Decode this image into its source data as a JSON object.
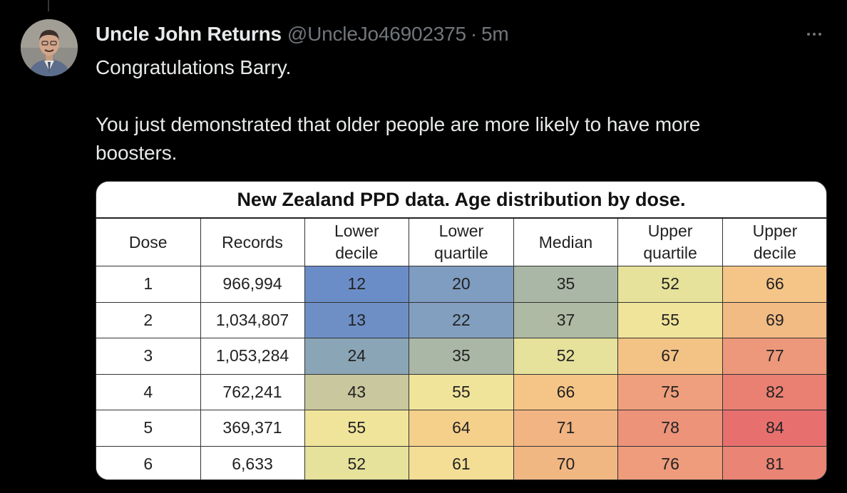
{
  "tweet": {
    "display_name": "Uncle John Returns",
    "handle": "@UncleJo46902375",
    "separator": "·",
    "time": "5m",
    "text_line1": "Congratulations Barry.",
    "text_line2": "You just demonstrated that older people are more likely to have more boosters."
  },
  "avatar_icon": "profile-photo",
  "more_icon": "more-horizontal-icon",
  "table_image": {
    "title": "New Zealand PPD data. Age distribution by dose.",
    "headers": {
      "dose": "Dose",
      "records": "Records",
      "lower_decile_1": "Lower",
      "lower_decile_2": "decile",
      "lower_quartile_1": "Lower",
      "lower_quartile_2": "quartile",
      "median": "Median",
      "upper_quartile_1": "Upper",
      "upper_quartile_2": "quartile",
      "upper_decile_1": "Upper",
      "upper_decile_2": "decile"
    },
    "rows": [
      {
        "dose": "1",
        "records": "966,994",
        "lower_decile": "12",
        "lower_quartile": "20",
        "median": "35",
        "upper_quartile": "52",
        "upper_decile": "66"
      },
      {
        "dose": "2",
        "records": "1,034,807",
        "lower_decile": "13",
        "lower_quartile": "22",
        "median": "37",
        "upper_quartile": "55",
        "upper_decile": "69"
      },
      {
        "dose": "3",
        "records": "1,053,284",
        "lower_decile": "24",
        "lower_quartile": "35",
        "median": "52",
        "upper_quartile": "67",
        "upper_decile": "77"
      },
      {
        "dose": "4",
        "records": "762,241",
        "lower_decile": "43",
        "lower_quartile": "55",
        "median": "66",
        "upper_quartile": "75",
        "upper_decile": "82"
      },
      {
        "dose": "5",
        "records": "369,371",
        "lower_decile": "55",
        "lower_quartile": "64",
        "median": "71",
        "upper_quartile": "78",
        "upper_decile": "84"
      },
      {
        "dose": "6",
        "records": "6,633",
        "lower_decile": "52",
        "lower_quartile": "61",
        "median": "70",
        "upper_quartile": "76",
        "upper_decile": "81"
      }
    ],
    "heat_colors": {
      "12": "#6b8dc7",
      "13": "#6d8fc6",
      "20": "#7f9cc1",
      "22": "#829fbf",
      "24": "#8aa5b6",
      "35": "#aab7a6",
      "37": "#aebaa3",
      "43": "#c8c79e",
      "52": "#e6e19b",
      "55": "#f0e49a",
      "61": "#f4de95",
      "64": "#f5d08b",
      "66": "#f5c587",
      "67": "#f3c285",
      "69": "#f2bb84",
      "70": "#f1b782",
      "71": "#f1b482",
      "75": "#ef9f7d",
      "76": "#ee9c7c",
      "77": "#ed987b",
      "78": "#ec937a",
      "81": "#ea8474",
      "82": "#e98072",
      "84": "#e7706f"
    }
  },
  "colors": {
    "background": "#000000",
    "primary_text": "#e7e9ea",
    "secondary_text": "#71767b"
  }
}
